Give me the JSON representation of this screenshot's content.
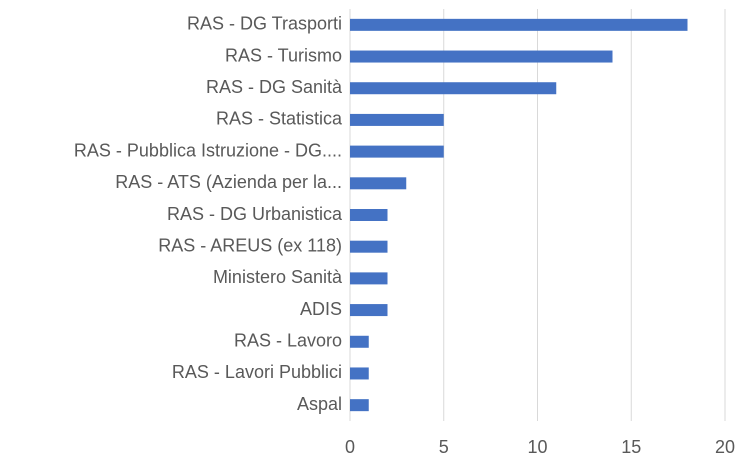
{
  "chart_data": {
    "type": "bar",
    "orientation": "horizontal",
    "categories": [
      "RAS - DG Trasporti",
      "RAS - Turismo",
      "RAS - DG Sanità",
      "RAS - Statistica",
      "RAS - Pubblica Istruzione - DG....",
      "RAS - ATS (Azienda per la...",
      "RAS - DG Urbanistica",
      "RAS - AREUS (ex 118)",
      "Ministero Sanità",
      "ADIS",
      "RAS - Lavoro",
      "RAS - Lavori Pubblici",
      "Aspal"
    ],
    "values": [
      18,
      14,
      11,
      5,
      5,
      3,
      2,
      2,
      2,
      2,
      1,
      1,
      1
    ],
    "color": "#4472c4",
    "xlim": [
      0,
      20
    ],
    "xticks": [
      0,
      5,
      10,
      15,
      20
    ],
    "grid": true
  }
}
